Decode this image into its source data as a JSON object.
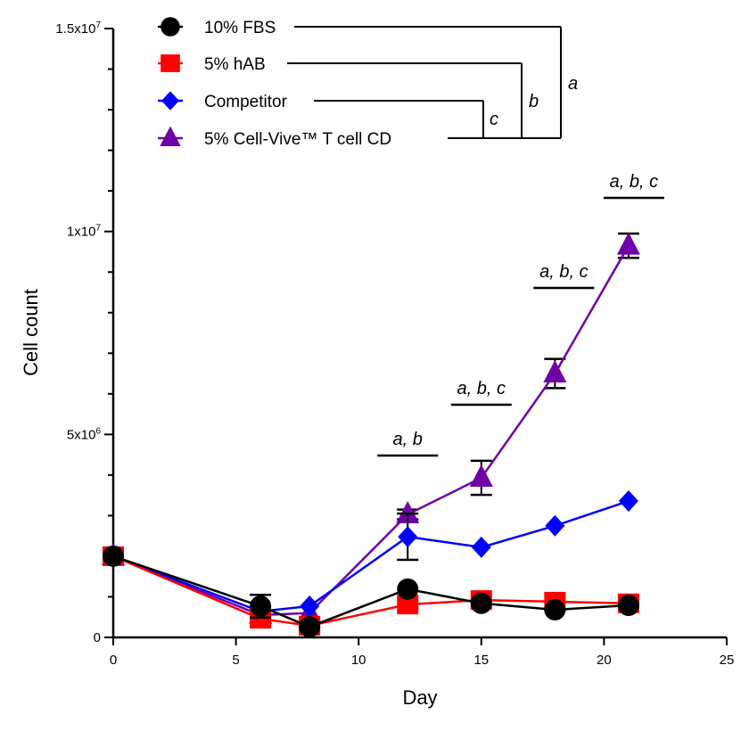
{
  "chart_data": {
    "type": "line",
    "xlabel": "Day",
    "ylabel": "Cell count",
    "xlim": [
      0,
      25
    ],
    "ylim": [
      0,
      15000000
    ],
    "x_ticks": [
      0,
      5,
      10,
      15,
      20,
      25
    ],
    "x_tick_labels": [
      "0",
      "5",
      "10",
      "15",
      "20",
      "25"
    ],
    "y_ticks": [
      0,
      5000000,
      10000000,
      15000000
    ],
    "y_tick_labels": [
      {
        "base": "0",
        "exp": ""
      },
      {
        "base": "5x10",
        "exp": "6"
      },
      {
        "base": "1x10",
        "exp": "7"
      },
      {
        "base": "1.5x10",
        "exp": "7"
      }
    ],
    "grid": false,
    "legend_placement": "top-left",
    "series": [
      {
        "name": "10% FBS",
        "color": "#000000",
        "marker": "circle",
        "x": [
          0,
          6,
          8,
          12,
          15,
          18,
          21
        ],
        "y": [
          2000000,
          770000,
          260000,
          1190000,
          840000,
          680000,
          790000
        ],
        "error": [
          0,
          280000,
          0,
          0,
          0,
          0,
          0
        ]
      },
      {
        "name": "5% hAB",
        "color": "#ff0000",
        "marker": "square",
        "x": [
          0,
          6,
          8,
          12,
          15,
          18,
          21
        ],
        "y": [
          2000000,
          460000,
          290000,
          810000,
          920000,
          880000,
          840000
        ],
        "error": [
          0,
          0,
          0,
          0,
          0,
          0,
          0
        ]
      },
      {
        "name": "Competitor",
        "color": "#0000ff",
        "marker": "diamond",
        "x": [
          0,
          6,
          8,
          12,
          15,
          18,
          21
        ],
        "y": [
          2000000,
          640000,
          770000,
          2480000,
          2220000,
          2750000,
          3360000
        ],
        "error": [
          0,
          0,
          0,
          570000,
          0,
          0,
          0
        ]
      },
      {
        "name": "5% Cell-Vive™ T cell CD",
        "color": "#7000a8",
        "marker": "triangle",
        "x": [
          0,
          6,
          8,
          12,
          15,
          18,
          21
        ],
        "y": [
          2000000,
          550000,
          600000,
          3030000,
          3930000,
          6500000,
          9650000
        ],
        "error": [
          0,
          0,
          0,
          120000,
          420000,
          360000,
          300000
        ]
      }
    ],
    "legend_brackets": [
      "a",
      "b",
      "c"
    ],
    "annotations": [
      {
        "day": 12,
        "text": "a, b"
      },
      {
        "day": 15,
        "text": "a, b, c"
      },
      {
        "day": 18,
        "text": "a, b, c"
      },
      {
        "day": 21,
        "text": "a, b, c"
      }
    ]
  }
}
